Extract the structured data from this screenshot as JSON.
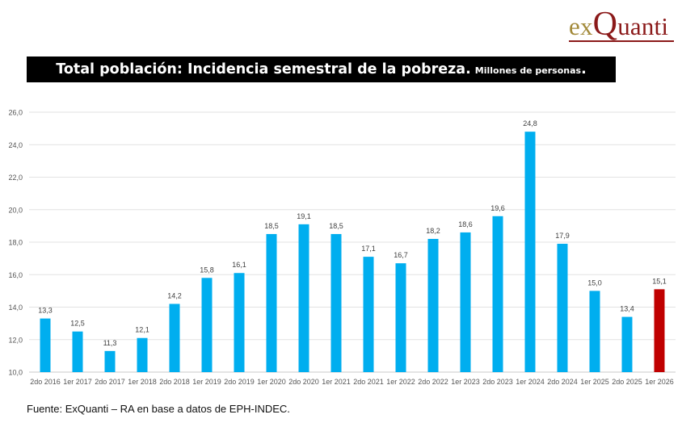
{
  "logo": {
    "text_ex": "ex",
    "text_q": "Q",
    "text_anti": "uanti"
  },
  "title": {
    "main": "Total población: Incidencia semestral de la pobreza.",
    "sub": "Millones de personas",
    "dot": "."
  },
  "source": "Fuente: ExQuanti – RA en base a datos de EPH-INDEC.",
  "colors": {
    "bar": "#00aeef",
    "highlight_bar": "#c00000",
    "title_bg": "#000000",
    "logo_gold": "#a38a3a",
    "logo_red": "#8b1a1a"
  },
  "chart_data": {
    "type": "bar",
    "title": "Total población: Incidencia semestral de la pobreza. Millones de personas.",
    "xlabel": "",
    "ylabel": "",
    "ylim": [
      10,
      26
    ],
    "yticks": [
      "10,0",
      "12,0",
      "14,0",
      "16,0",
      "18,0",
      "20,0",
      "22,0",
      "24,0",
      "26,0"
    ],
    "grid": true,
    "highlight_index": 19,
    "categories": [
      "2do 2016",
      "1er 2017",
      "2do 2017",
      "1er 2018",
      "2do 2018",
      "1er 2019",
      "2do 2019",
      "1er 2020",
      "2do 2020",
      "1er 2021",
      "2do 2021",
      "1er 2022",
      "2do 2022",
      "1er 2023",
      "2do 2023",
      "1er 2024",
      "2do 2024",
      "1er 2025",
      "2do 2025",
      "1er 2026"
    ],
    "values": [
      13.3,
      12.5,
      11.3,
      12.1,
      14.2,
      15.8,
      16.1,
      18.5,
      19.1,
      18.5,
      17.1,
      16.7,
      18.2,
      18.6,
      19.6,
      24.8,
      17.9,
      15.0,
      13.4,
      15.1
    ],
    "labels": [
      "13,3",
      "12,5",
      "11,3",
      "12,1",
      "14,2",
      "15,8",
      "16,1",
      "18,5",
      "19,1",
      "18,5",
      "17,1",
      "16,7",
      "18,2",
      "18,6",
      "19,6",
      "24,8",
      "17,9",
      "15,0",
      "13,4",
      "15,1"
    ]
  }
}
